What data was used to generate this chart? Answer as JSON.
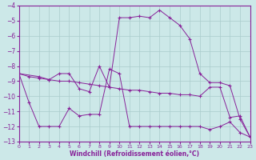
{
  "xlabel": "Windchill (Refroidissement éolien,°C)",
  "background_color": "#cce8e8",
  "grid_color": "#aacccc",
  "line_color": "#882299",
  "xlim": [
    0,
    23
  ],
  "ylim": [
    -13.0,
    -4.0
  ],
  "yticks": [
    -13,
    -12,
    -11,
    -10,
    -9,
    -8,
    -7,
    -6,
    -5,
    -4
  ],
  "xticks": [
    0,
    1,
    2,
    3,
    4,
    5,
    6,
    7,
    8,
    9,
    10,
    11,
    12,
    13,
    14,
    15,
    16,
    17,
    18,
    19,
    20,
    21,
    22,
    23
  ],
  "line1_x": [
    0,
    1,
    2,
    3,
    4,
    5,
    6,
    7,
    8,
    9,
    10,
    11,
    12,
    13,
    14,
    15,
    16,
    17,
    18,
    19,
    20,
    21,
    22,
    23
  ],
  "line1_y": [
    -8.5,
    -10.4,
    -12.0,
    -12.0,
    -12.0,
    -10.8,
    -11.3,
    -11.2,
    -11.2,
    -8.2,
    -8.5,
    -12.0,
    -12.0,
    -12.0,
    -12.0,
    -12.0,
    -12.0,
    -12.0,
    -12.0,
    -12.2,
    -12.0,
    -11.7,
    -12.4,
    -12.7
  ],
  "line2_x": [
    0,
    1,
    2,
    3,
    4,
    5,
    6,
    7,
    8,
    9,
    10,
    11,
    12,
    13,
    14,
    15,
    16,
    17,
    18,
    19,
    20,
    21,
    22,
    23
  ],
  "line2_y": [
    -8.5,
    -8.7,
    -8.8,
    -8.9,
    -9.0,
    -9.0,
    -9.1,
    -9.2,
    -9.3,
    -9.4,
    -9.5,
    -9.6,
    -9.6,
    -9.7,
    -9.8,
    -9.8,
    -9.9,
    -9.9,
    -10.0,
    -9.4,
    -9.4,
    -11.4,
    -11.3,
    -12.7
  ],
  "line3_x": [
    0,
    2,
    3,
    4,
    5,
    6,
    7,
    8,
    9,
    10,
    11,
    12,
    13,
    14,
    15,
    16,
    17,
    18,
    19,
    20,
    21,
    22,
    23
  ],
  "line3_y": [
    -8.5,
    -8.7,
    -8.9,
    -8.5,
    -8.5,
    -9.5,
    -9.7,
    -8.0,
    -9.4,
    -4.8,
    -4.8,
    -4.7,
    -4.8,
    -4.3,
    -4.8,
    -5.3,
    -6.2,
    -8.5,
    -9.1,
    -9.1,
    -9.3,
    -11.5,
    -12.7
  ]
}
